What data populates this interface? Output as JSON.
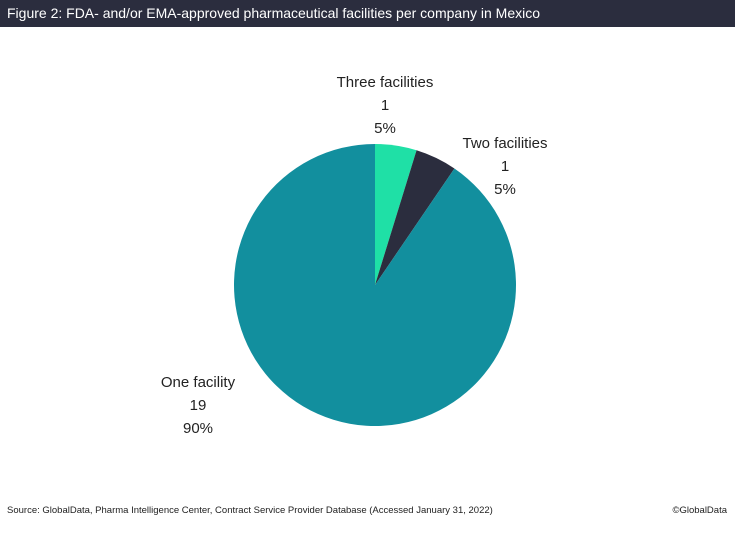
{
  "header": {
    "title": "Figure 2: FDA- and/or EMA-approved pharmaceutical facilities per company in Mexico"
  },
  "chart_data": {
    "type": "pie",
    "title": "Figure 2: FDA- and/or EMA-approved pharmaceutical facilities per company in Mexico",
    "slices": [
      {
        "label": "Three facilities",
        "value": 1,
        "percent": "5%",
        "count_label": "1",
        "color": "#1fe0a6"
      },
      {
        "label": "Two facilities",
        "value": 1,
        "percent": "5%",
        "count_label": "1",
        "color": "#2b2d3e"
      },
      {
        "label": "One facility",
        "value": 19,
        "percent": "90%",
        "count_label": "19",
        "color": "#128f9e"
      }
    ],
    "start": "12 o'clock",
    "direction": "clockwise",
    "legend": "none"
  },
  "footer": {
    "source": "Source: GlobalData, Pharma Intelligence Center, Contract Service Provider Database (Accessed January 31, 2022)",
    "credit": "©GlobalData"
  }
}
